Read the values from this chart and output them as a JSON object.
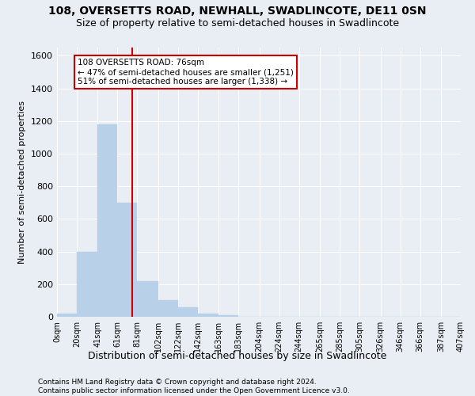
{
  "title": "108, OVERSETTS ROAD, NEWHALL, SWADLINCOTE, DE11 0SN",
  "subtitle": "Size of property relative to semi-detached houses in Swadlincote",
  "xlabel": "Distribution of semi-detached houses by size in Swadlincote",
  "ylabel": "Number of semi-detached properties",
  "footer_line1": "Contains HM Land Registry data © Crown copyright and database right 2024.",
  "footer_line2": "Contains public sector information licensed under the Open Government Licence v3.0.",
  "bin_edges": [
    0,
    20,
    41,
    61,
    81,
    102,
    122,
    142,
    163,
    183,
    204,
    224,
    244,
    265,
    285,
    305,
    326,
    346,
    366,
    387,
    407
  ],
  "bar_heights": [
    20,
    400,
    1180,
    700,
    220,
    100,
    60,
    20,
    8,
    0,
    0,
    0,
    0,
    0,
    0,
    0,
    0,
    0,
    0,
    0
  ],
  "bar_color": "#b8d0e8",
  "bar_edgecolor": "#b8d0e8",
  "property_sqm": 76,
  "vline_color": "#cc0000",
  "annotation_text_line1": "108 OVERSETTS ROAD: 76sqm",
  "annotation_text_line2": "← 47% of semi-detached houses are smaller (1,251)",
  "annotation_text_line3": "51% of semi-detached houses are larger (1,338) →",
  "annotation_box_facecolor": "#ffffff",
  "annotation_box_edgecolor": "#cc0000",
  "ylim": [
    0,
    1650
  ],
  "yticks": [
    0,
    200,
    400,
    600,
    800,
    1000,
    1200,
    1400,
    1600
  ],
  "background_color": "#e8eef4",
  "grid_color": "#ffffff",
  "title_fontsize": 10,
  "subtitle_fontsize": 9,
  "footer_fontsize": 6.5
}
